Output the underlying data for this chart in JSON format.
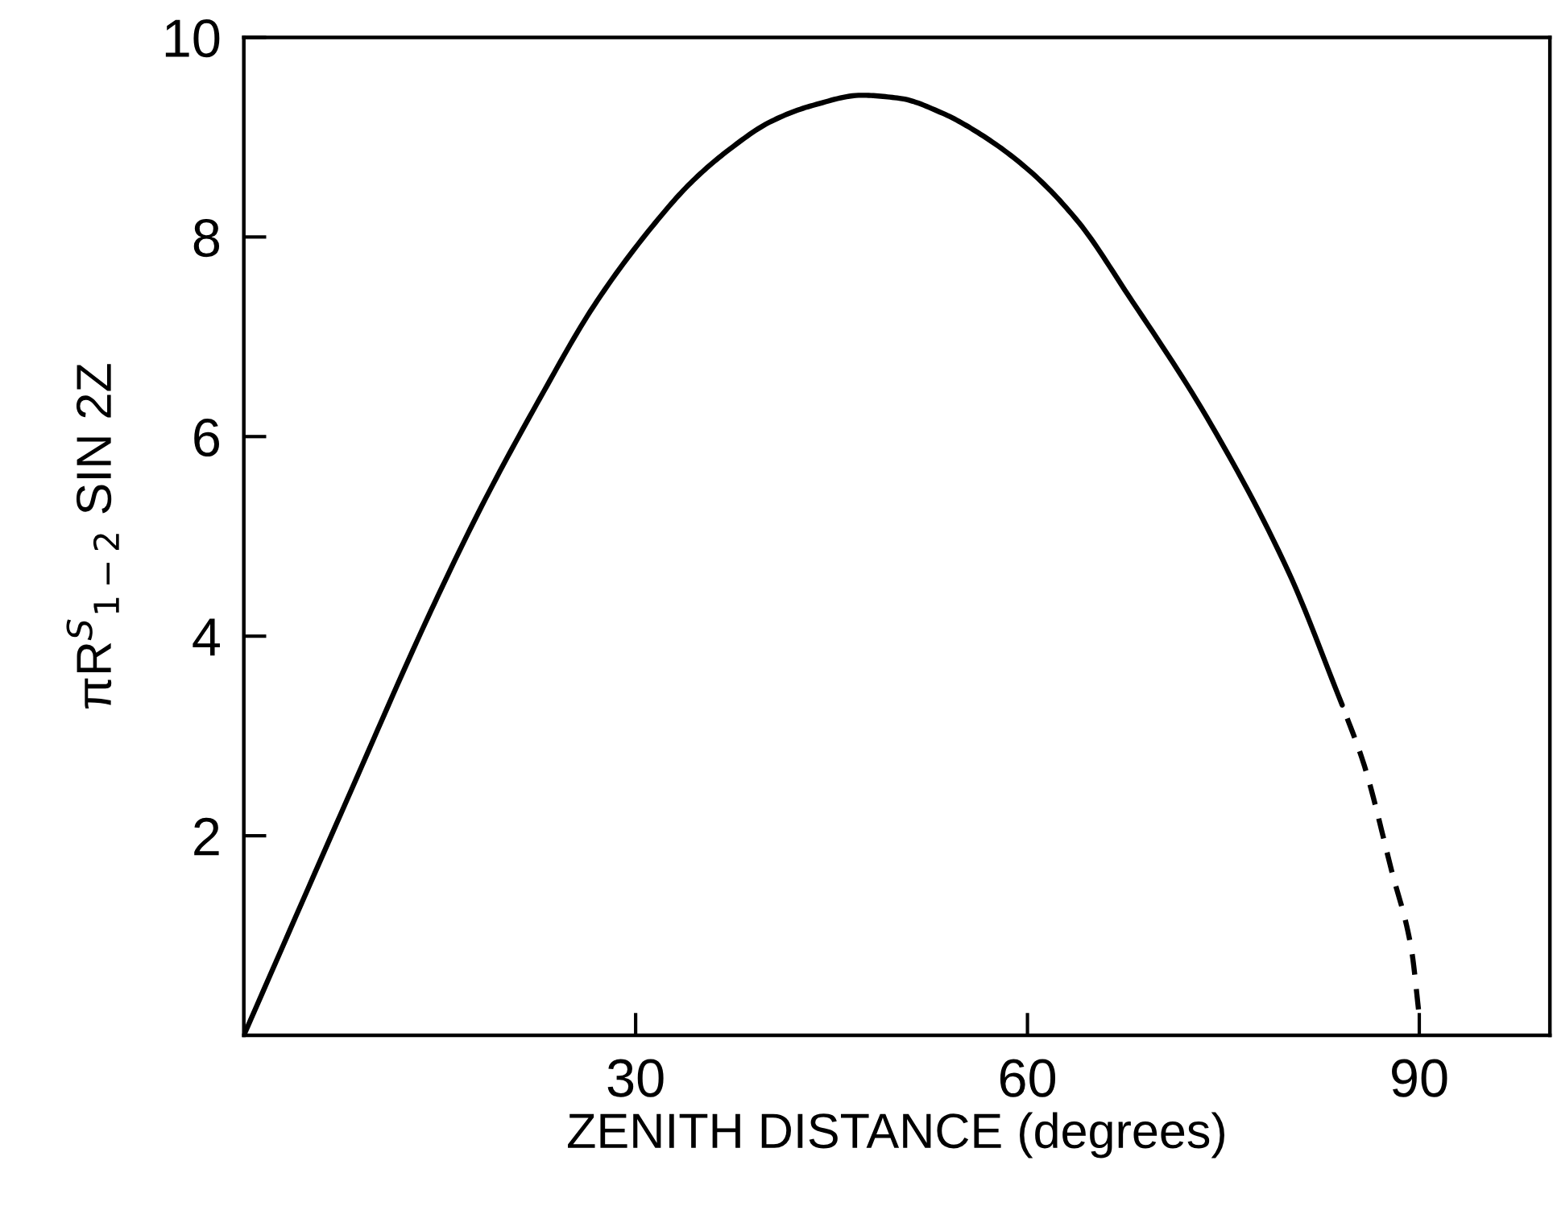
{
  "chart_data": {
    "type": "line",
    "xlabel": "ZENITH DISTANCE (degrees)",
    "ylabel": "πR$^{S}$$_{1−2}$ SIN 2Z",
    "xlim": [
      0,
      100
    ],
    "ylim": [
      0,
      10
    ],
    "xticks": [
      30,
      60,
      90
    ],
    "yticks": [
      2,
      4,
      6,
      8,
      10
    ],
    "series": [
      {
        "color": "#000000",
        "line_style": "solid",
        "x": [
          0,
          7.9,
          14.1,
          18.2,
          22.7,
          26.8,
          31.3,
          34.2,
          37.1,
          40.4,
          43.6,
          47.3,
          50.2,
          53.5,
          56.4,
          60.1,
          63.9,
          67.7,
          73.7,
          80.0,
          84.1
        ],
        "values": [
          0,
          2.36,
          4.19,
          5.3,
          6.39,
          7.31,
          8.11,
          8.54,
          8.87,
          9.16,
          9.32,
          9.42,
          9.39,
          9.24,
          9.03,
          8.67,
          8.15,
          7.42,
          6.2,
          4.64,
          3.31
        ]
      },
      {
        "color": "#000000",
        "line_style": "dashed",
        "x": [
          84.1,
          85.8,
          87.9,
          89.4,
          90.0
        ],
        "values": [
          3.31,
          2.7,
          1.64,
          0.86,
          0.19
        ]
      }
    ]
  }
}
